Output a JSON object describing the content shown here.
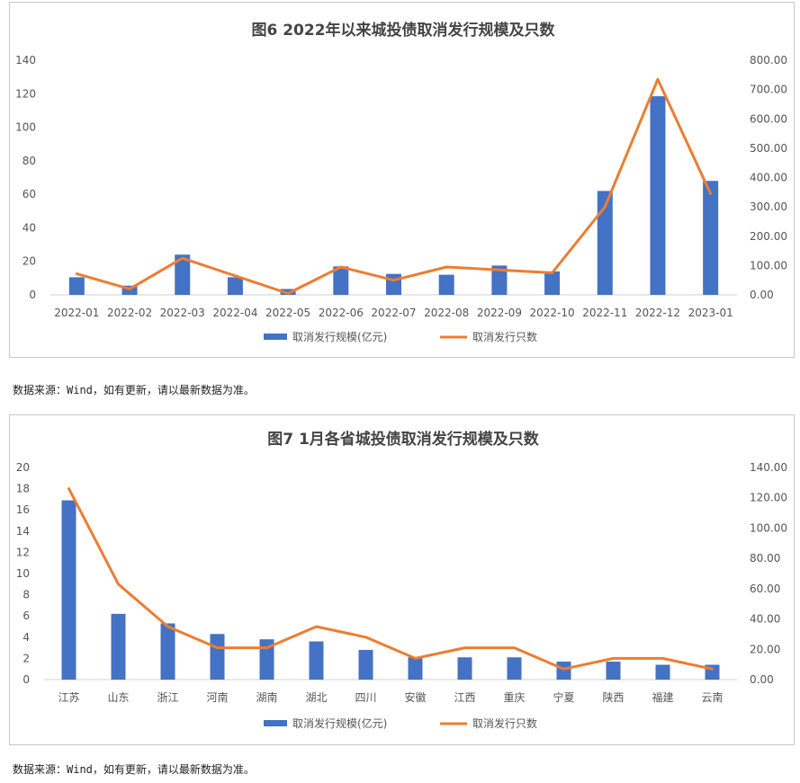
{
  "charts": [
    {
      "title": "图6 2022年以来城投债取消发行规模及只数",
      "source": "数据来源：Wind，如有更新，请以最新数据为准。",
      "chart_data": {
        "type": "bar",
        "categories": [
          "2022-01",
          "2022-02",
          "2022-03",
          "2022-04",
          "2022-05",
          "2022-06",
          "2022-07",
          "2022-08",
          "2022-09",
          "2022-10",
          "2022-11",
          "2022-12",
          "2023-01"
        ],
        "series": [
          {
            "name": "取消发行规模(亿元)",
            "type": "bar",
            "axis": "left",
            "values": [
              10.5,
              5.5,
              24,
              10.5,
              3.5,
              17,
              12.5,
              12,
              17.5,
              14,
              62,
              118.5,
              68
            ]
          },
          {
            "name": "取消发行只数",
            "type": "line",
            "axis": "right",
            "values": [
              72,
              20,
              125,
              65,
              5,
              95,
              50,
              95,
              85,
              75,
              300,
              735,
              345
            ]
          }
        ],
        "y_left": {
          "min": 0,
          "max": 140,
          "ticks": [
            "0",
            "20",
            "40",
            "60",
            "80",
            "100",
            "120",
            "140"
          ]
        },
        "y_right": {
          "min": 0,
          "max": 800,
          "ticks": [
            "0.00",
            "100.00",
            "200.00",
            "300.00",
            "400.00",
            "500.00",
            "600.00",
            "700.00",
            "800.00"
          ]
        },
        "legend": "bottom",
        "colors": {
          "bar": "#4472c4",
          "line": "#ed7d31"
        }
      }
    },
    {
      "title": "图7 1月各省城投债取消发行规模及只数",
      "source": "数据来源：Wind，如有更新，请以最新数据为准。",
      "chart_data": {
        "type": "bar",
        "categories": [
          "江苏",
          "山东",
          "浙江",
          "河南",
          "湖南",
          "湖北",
          "四川",
          "安徽",
          "江西",
          "重庆",
          "宁夏",
          "陕西",
          "福建",
          "云南"
        ],
        "series": [
          {
            "name": "取消发行规模(亿元)",
            "type": "bar",
            "axis": "left",
            "values": [
              16.9,
              6.2,
              5.3,
              4.3,
              3.8,
              3.6,
              2.8,
              2.1,
              2.1,
              2.1,
              1.7,
              1.7,
              1.4,
              1.4
            ]
          },
          {
            "name": "取消发行只数",
            "type": "line",
            "axis": "right",
            "values": [
              126,
              63,
              35,
              21,
              21,
              35,
              28,
              14,
              21,
              21,
              7,
              14,
              14,
              7
            ]
          }
        ],
        "y_left": {
          "min": 0,
          "max": 20,
          "ticks": [
            "0",
            "2",
            "4",
            "6",
            "8",
            "10",
            "12",
            "14",
            "16",
            "18",
            "20"
          ]
        },
        "y_right": {
          "min": 0,
          "max": 140,
          "ticks": [
            "0.00",
            "20.00",
            "40.00",
            "60.00",
            "80.00",
            "100.00",
            "120.00",
            "140.00"
          ]
        },
        "legend": "bottom",
        "colors": {
          "bar": "#4472c4",
          "line": "#ed7d31"
        }
      }
    }
  ]
}
